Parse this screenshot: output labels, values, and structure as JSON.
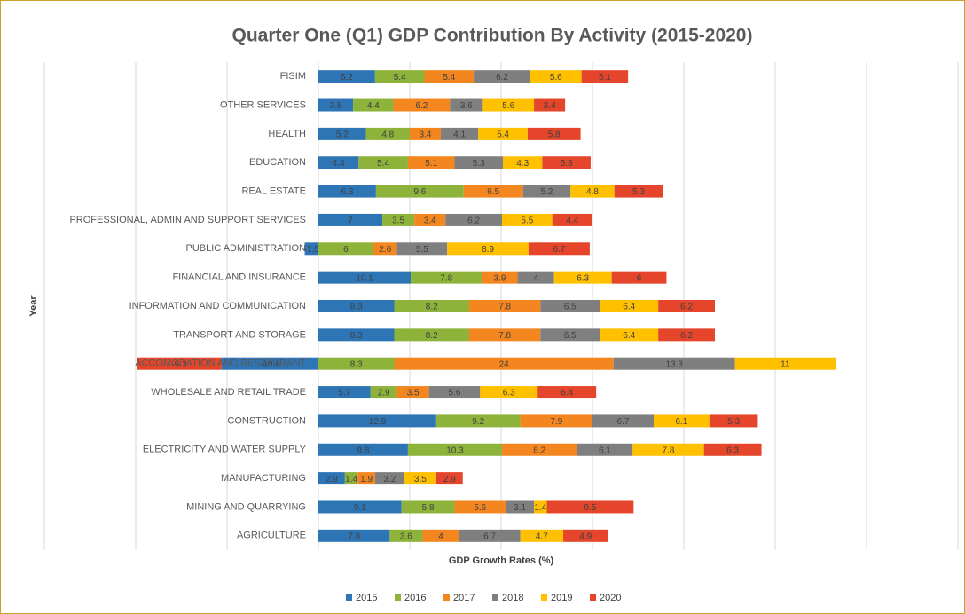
{
  "chart_data": {
    "type": "stacked_bar_horizontal",
    "title": "Quarter One (Q1) GDP Contribution By Activity (2015-2020)",
    "xlabel": "GDP Growth Rates (%)",
    "ylabel": "Year",
    "categories": [
      "AGRICULTURE",
      "MINING AND QUARRYING",
      "MANUFACTURING",
      "ELECTRICITY AND WATER SUPPLY",
      "CONSTRUCTION",
      "WHOLESALE AND RETAIL TRADE",
      "ACCOMODATION AND RESTAURANT",
      "TRANSPORT AND STORAGE",
      "INFORMATION AND COMMUNICATION",
      "FINANCIAL AND INSURANCE",
      "PUBLIC ADMINISTRATION",
      "PROFESSIONAL, ADMIN AND SUPPORT SERVICES",
      "REAL ESTATE",
      "EDUCATION",
      "HEALTH",
      "OTHER SERVICES",
      "FISIM"
    ],
    "series": [
      {
        "name": "2015",
        "color": "#2e75b6",
        "values": [
          7.8,
          9.1,
          2.9,
          9.8,
          12.9,
          5.7,
          -10.6,
          8.3,
          8.3,
          10.1,
          -1.5,
          7,
          6.3,
          4.4,
          5.2,
          3.8,
          6.2
        ]
      },
      {
        "name": "2016",
        "color": "#8db33a",
        "values": [
          3.6,
          5.8,
          1.4,
          10.3,
          9.2,
          2.9,
          8.3,
          8.2,
          8.2,
          7.8,
          6,
          3.5,
          9.6,
          5.4,
          4.8,
          4.4,
          5.4
        ]
      },
      {
        "name": "2017",
        "color": "#f4861f",
        "values": [
          4,
          5.6,
          1.9,
          8.2,
          7.9,
          3.5,
          24,
          7.8,
          7.8,
          3.9,
          2.6,
          3.4,
          6.5,
          5.1,
          3.4,
          6.2,
          5.4
        ]
      },
      {
        "name": "2018",
        "color": "#7f7f7f",
        "values": [
          6.7,
          3.1,
          3.2,
          6.1,
          6.7,
          5.6,
          13.3,
          6.5,
          6.5,
          4,
          5.5,
          6.2,
          5.2,
          5.3,
          4.1,
          3.6,
          6.2
        ]
      },
      {
        "name": "2019",
        "color": "#ffc000",
        "values": [
          4.7,
          1.4,
          3.5,
          7.8,
          6.1,
          6.3,
          11,
          6.4,
          6.4,
          6.3,
          8.9,
          5.5,
          4.8,
          4.3,
          5.4,
          5.6,
          5.6
        ]
      },
      {
        "name": "2020",
        "color": "#e5452a",
        "values": [
          4.9,
          9.5,
          2.9,
          6.3,
          5.3,
          6.4,
          -9.3,
          6.2,
          6.2,
          6,
          6.7,
          4.4,
          5.3,
          5.3,
          5.8,
          3.4,
          5.1
        ]
      }
    ],
    "xlim": [
      -30,
      70
    ],
    "xticks": [
      -30,
      -20,
      -10,
      0,
      10,
      20,
      30,
      40,
      50,
      60,
      70
    ],
    "grid": true,
    "legend": "bottom"
  }
}
